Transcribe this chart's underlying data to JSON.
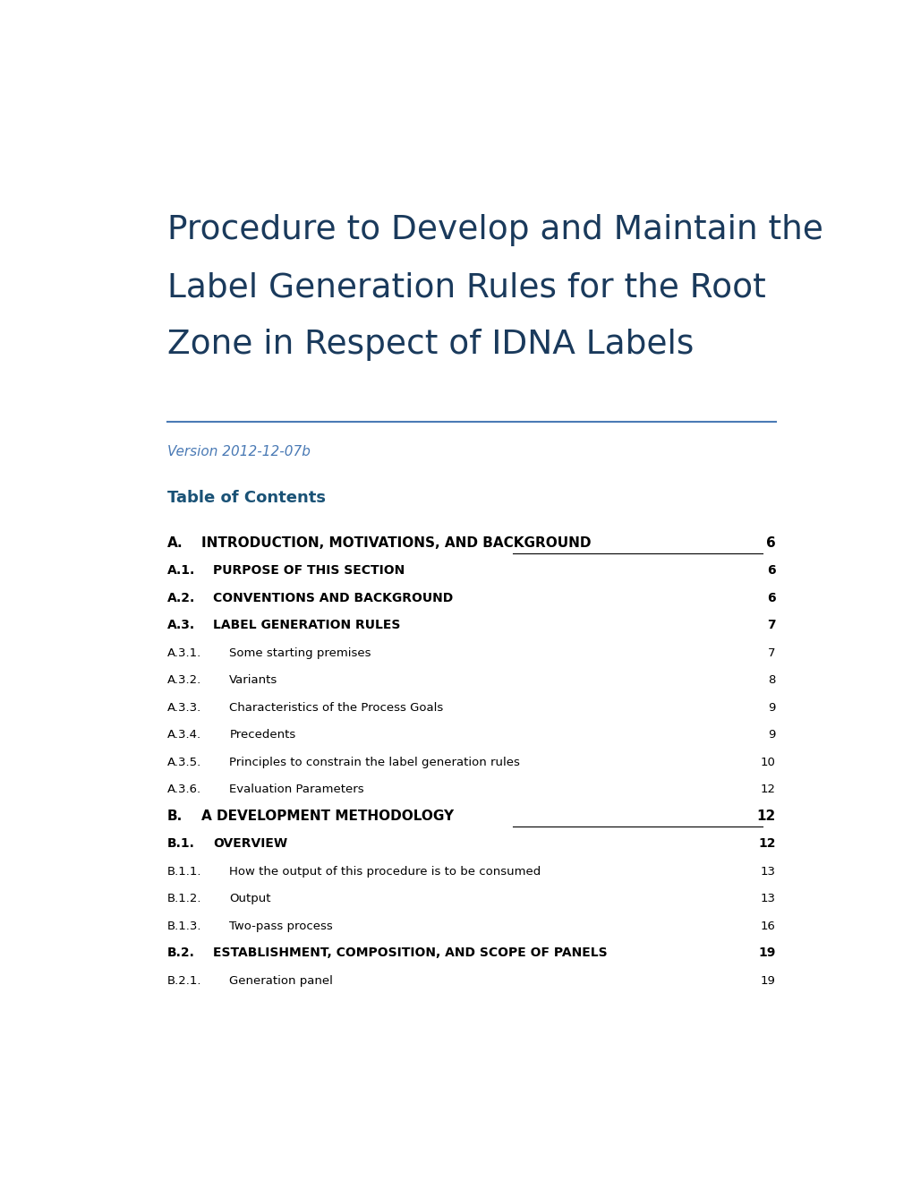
{
  "title_lines": [
    "Procedure to Develop and Maintain the",
    "Label Generation Rules for the Root",
    "Zone in Respect of IDNA Labels"
  ],
  "title_color": "#1a3a5c",
  "version_text": "Version 2012-12-07b",
  "version_color": "#4a7ab5",
  "toc_heading": "Table of Contents",
  "toc_heading_color": "#1a5276",
  "separator_color": "#4a7ab5",
  "background_color": "#ffffff",
  "entries": [
    {
      "section": "A.",
      "title": "INTRODUCTION, MOTIVATIONS, AND BACKGROUND",
      "page": "6",
      "level": 1,
      "bold": true,
      "has_line": true
    },
    {
      "section": "A.1.",
      "title": "PURPOSE OF THIS SECTION",
      "page": "6",
      "level": 2,
      "bold": true,
      "has_line": false
    },
    {
      "section": "A.2.",
      "title": "CONVENTIONS AND BACKGROUND",
      "page": "6",
      "level": 2,
      "bold": true,
      "has_line": false
    },
    {
      "section": "A.3.",
      "title": "LABEL GENERATION RULES",
      "page": "7",
      "level": 2,
      "bold": true,
      "has_line": false
    },
    {
      "section": "A.3.1.",
      "title": "Some starting premises",
      "page": "7",
      "level": 3,
      "bold": false,
      "has_line": false
    },
    {
      "section": "A.3.2.",
      "title": "Variants",
      "page": "8",
      "level": 3,
      "bold": false,
      "has_line": false
    },
    {
      "section": "A.3.3.",
      "title": "Characteristics of the Process Goals",
      "page": "9",
      "level": 3,
      "bold": false,
      "has_line": false
    },
    {
      "section": "A.3.4.",
      "title": "Precedents",
      "page": "9",
      "level": 3,
      "bold": false,
      "has_line": false
    },
    {
      "section": "A.3.5.",
      "title": "Principles to constrain the label generation rules",
      "page": "10",
      "level": 3,
      "bold": false,
      "has_line": false
    },
    {
      "section": "A.3.6.",
      "title": "Evaluation Parameters",
      "page": "12",
      "level": 3,
      "bold": false,
      "has_line": false
    },
    {
      "section": "B.",
      "title": "A DEVELOPMENT METHODOLOGY",
      "page": "12",
      "level": 1,
      "bold": true,
      "has_line": true
    },
    {
      "section": "B.1.",
      "title": "OVERVIEW",
      "page": "12",
      "level": 2,
      "bold": true,
      "has_line": false
    },
    {
      "section": "B.1.1.",
      "title": "How the output of this procedure is to be consumed",
      "page": "13",
      "level": 3,
      "bold": false,
      "has_line": false
    },
    {
      "section": "B.1.2.",
      "title": "Output",
      "page": "13",
      "level": 3,
      "bold": false,
      "has_line": false
    },
    {
      "section": "B.1.3.",
      "title": "Two-pass process",
      "page": "16",
      "level": 3,
      "bold": false,
      "has_line": false
    },
    {
      "section": "B.2.",
      "title": "ESTABLISHMENT, COMPOSITION, AND SCOPE OF PANELS",
      "page": "19",
      "level": 2,
      "bold": true,
      "has_line": false
    },
    {
      "section": "B.2.1.",
      "title": "Generation panel",
      "page": "19",
      "level": 3,
      "bold": false,
      "has_line": false
    }
  ]
}
